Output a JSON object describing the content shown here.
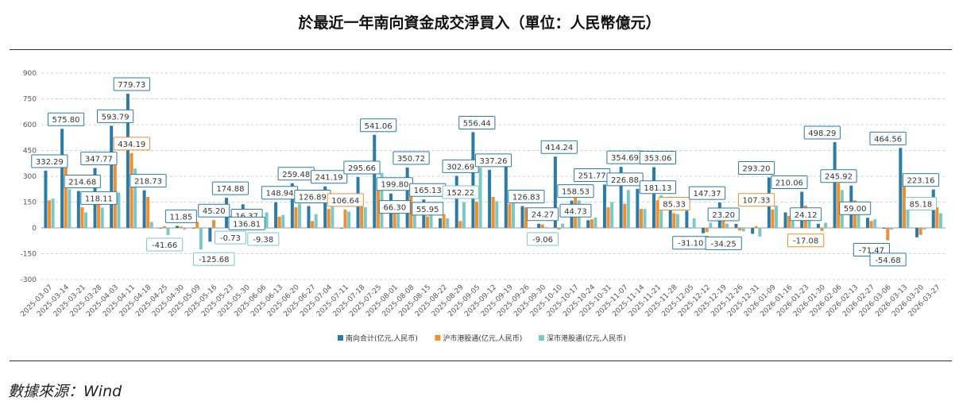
{
  "title": "於最近一年南向資金成交淨買入（單位：人民幣億元）",
  "source": "數據來源：Wind",
  "colors": {
    "total": "#2a7ba6",
    "sh": "#f28e2b",
    "sz": "#7ac8c8",
    "grid": "#d0d0d0"
  },
  "chart_data": {
    "type": "bar",
    "ylim": [
      -300,
      900
    ],
    "yticks": [
      -300,
      -150,
      0,
      150,
      300,
      450,
      600,
      750,
      900
    ],
    "legend_position": "bottom",
    "categories": [
      "2025-03-07",
      "2025-03-14",
      "2025-03-21",
      "2025-03-28",
      "2025-04-03",
      "2025-04-11",
      "2025-04-18",
      "2025-04-25",
      "2025-04-30",
      "2025-05-09",
      "2025-05-16",
      "2025-05-23",
      "2025-05-30",
      "2025-06-06",
      "2025-06-13",
      "2025-06-20",
      "2025-06-27",
      "2025-07-04",
      "2025-07-11",
      "2025-07-18",
      "2025-07-25",
      "2025-08-01",
      "2025-08-08",
      "2025-08-15",
      "2025-08-22",
      "2025-08-29",
      "2025-09-05",
      "2025-09-12",
      "2025-09-19",
      "2025-09-26",
      "2025-09-30",
      "2025-10-10",
      "2025-10-17",
      "2025-10-24",
      "2025-10-31",
      "2025-11-07",
      "2025-11-14",
      "2025-11-21",
      "2025-11-28",
      "2025-12-05",
      "2025-12-12",
      "2025-12-19",
      "2025-12-26",
      "2025-12-31",
      "2026-01-09",
      "2026-01-16",
      "2026-01-23",
      "2026-01-30",
      "2026-02-06",
      "2026-02-13",
      "2026-02-27",
      "2026-03-06",
      "2026-03-13",
      "2026-03-20",
      "2026-03-27"
    ],
    "series": [
      {
        "name": "南向合计(亿元,人民币)",
        "color_key": "total",
        "values": [
          332.29,
          575.8,
          214.68,
          347.77,
          593.79,
          779.73,
          218.73,
          -2,
          11.85,
          -2,
          -80,
          174.88,
          136.81,
          -9.38,
          148.94,
          259.48,
          126.89,
          241.19,
          -3,
          295.66,
          541.06,
          199.8,
          350.72,
          165.13,
          55.95,
          302.69,
          556.44,
          337.26,
          400,
          126.83,
          24.27,
          414.24,
          158.53,
          44.73,
          251.77,
          354.69,
          226.88,
          353.06,
          181.13,
          100,
          -31.1,
          147.37,
          23.2,
          -34.25,
          293.2,
          90,
          210.06,
          24.12,
          498.29,
          245.92,
          59.0,
          -5,
          464.56,
          -54.68,
          223.16
        ]
      },
      {
        "name": "沪市港股通(亿元,人民币)",
        "color_key": "sh",
        "values": [
          160,
          350,
          120,
          140,
          390,
          434.19,
          180,
          10,
          8,
          35,
          45.2,
          70,
          16.37,
          30,
          65,
          120,
          40,
          110,
          106.64,
          160,
          220,
          100,
          200,
          66.3,
          80,
          40,
          152.22,
          180,
          140,
          120,
          20,
          -9.06,
          180,
          50,
          120,
          140,
          110,
          160,
          85.33,
          0,
          -25,
          50,
          -15,
          10,
          107.33,
          70,
          130,
          -17.08,
          260,
          160,
          40,
          -71.47,
          300,
          -40,
          120
        ]
      },
      {
        "name": "深市港股通(亿元,人民币)",
        "color_key": "sz",
        "values": [
          170,
          225,
          90,
          118.11,
          205,
          345,
          35,
          -41.66,
          -10,
          -125.68,
          -0.73,
          50,
          -9.38,
          90,
          75,
          140,
          80,
          130,
          95,
          120,
          320,
          100,
          150,
          95,
          55,
          150,
          350,
          155,
          215,
          0,
          5,
          25,
          160,
          60,
          150,
          220,
          110,
          190,
          80,
          55,
          30,
          25,
          -20,
          -50,
          130,
          40,
          80,
          30,
          220,
          90,
          50,
          -10,
          160,
          -10,
          85.18
        ]
      }
    ],
    "callouts": [
      {
        "i": 0,
        "text": "332.29",
        "c": "total"
      },
      {
        "i": 1,
        "text": "575.80",
        "c": "total"
      },
      {
        "i": 2,
        "text": "214.68",
        "c": "total"
      },
      {
        "i": 3,
        "text": "347.77",
        "c": "total"
      },
      {
        "i": 3,
        "text": "118.11",
        "c": "total"
      },
      {
        "i": 4,
        "text": "593.79",
        "c": "total"
      },
      {
        "i": 5,
        "text": "779.73",
        "c": "total"
      },
      {
        "i": 5,
        "text": "434.19",
        "c": "sh"
      },
      {
        "i": 6,
        "text": "218.73",
        "c": "total"
      },
      {
        "i": 7,
        "text": "-41.66",
        "c": "sz"
      },
      {
        "i": 8,
        "text": "11.85",
        "c": "total"
      },
      {
        "i": 10,
        "text": "45.20",
        "c": "total"
      },
      {
        "i": 10,
        "text": "-125.68",
        "c": "sz"
      },
      {
        "i": 11,
        "text": "174.88",
        "c": "total"
      },
      {
        "i": 11,
        "text": "-0.73",
        "c": "sz"
      },
      {
        "i": 12,
        "text": "16.37",
        "c": "total"
      },
      {
        "i": 12,
        "text": "136.81",
        "c": "total"
      },
      {
        "i": 13,
        "text": "-9.38",
        "c": "sz"
      },
      {
        "i": 14,
        "text": "148.94",
        "c": "total"
      },
      {
        "i": 15,
        "text": "259.48",
        "c": "total"
      },
      {
        "i": 16,
        "text": "126.89",
        "c": "total"
      },
      {
        "i": 17,
        "text": "241.19",
        "c": "total"
      },
      {
        "i": 18,
        "text": "106.64",
        "c": "sh"
      },
      {
        "i": 19,
        "text": "295.66",
        "c": "total"
      },
      {
        "i": 20,
        "text": "541.06",
        "c": "total"
      },
      {
        "i": 21,
        "text": "199.80",
        "c": "total"
      },
      {
        "i": 21,
        "text": "66.30",
        "c": "total"
      },
      {
        "i": 22,
        "text": "350.72",
        "c": "total"
      },
      {
        "i": 23,
        "text": "165.13",
        "c": "total"
      },
      {
        "i": 23,
        "text": "55.95",
        "c": "total"
      },
      {
        "i": 25,
        "text": "302.69",
        "c": "total"
      },
      {
        "i": 25,
        "text": "152.22",
        "c": "sz"
      },
      {
        "i": 26,
        "text": "556.44",
        "c": "total"
      },
      {
        "i": 27,
        "text": "337.26",
        "c": "total"
      },
      {
        "i": 29,
        "text": "126.83",
        "c": "total"
      },
      {
        "i": 30,
        "text": "24.27",
        "c": "total"
      },
      {
        "i": 30,
        "text": "-9.06",
        "c": "sz"
      },
      {
        "i": 31,
        "text": "414.24",
        "c": "total"
      },
      {
        "i": 32,
        "text": "158.53",
        "c": "total"
      },
      {
        "i": 32,
        "text": "44.73",
        "c": "total"
      },
      {
        "i": 33,
        "text": "251.77",
        "c": "total"
      },
      {
        "i": 35,
        "text": "354.69",
        "c": "total"
      },
      {
        "i": 35,
        "text": "226.88",
        "c": "total"
      },
      {
        "i": 37,
        "text": "353.06",
        "c": "total"
      },
      {
        "i": 37,
        "text": "181.13",
        "c": "total"
      },
      {
        "i": 38,
        "text": "85.33",
        "c": "sh"
      },
      {
        "i": 39,
        "text": "-31.10",
        "c": "total"
      },
      {
        "i": 40,
        "text": "147.37",
        "c": "total"
      },
      {
        "i": 41,
        "text": "23.20",
        "c": "total"
      },
      {
        "i": 41,
        "text": "-34.25",
        "c": "total"
      },
      {
        "i": 43,
        "text": "293.20",
        "c": "total"
      },
      {
        "i": 43,
        "text": "107.33",
        "c": "sh"
      },
      {
        "i": 45,
        "text": "210.06",
        "c": "total"
      },
      {
        "i": 46,
        "text": "24.12",
        "c": "total"
      },
      {
        "i": 46,
        "text": "-17.08",
        "c": "sh"
      },
      {
        "i": 47,
        "text": "498.29",
        "c": "total"
      },
      {
        "i": 48,
        "text": "245.92",
        "c": "total"
      },
      {
        "i": 49,
        "text": "59.00",
        "c": "total"
      },
      {
        "i": 50,
        "text": "-71.47",
        "c": "total"
      },
      {
        "i": 51,
        "text": "464.56",
        "c": "total"
      },
      {
        "i": 51,
        "text": "-54.68",
        "c": "total"
      },
      {
        "i": 53,
        "text": "223.16",
        "c": "total"
      },
      {
        "i": 53,
        "text": "85.18",
        "c": "sz"
      }
    ]
  }
}
